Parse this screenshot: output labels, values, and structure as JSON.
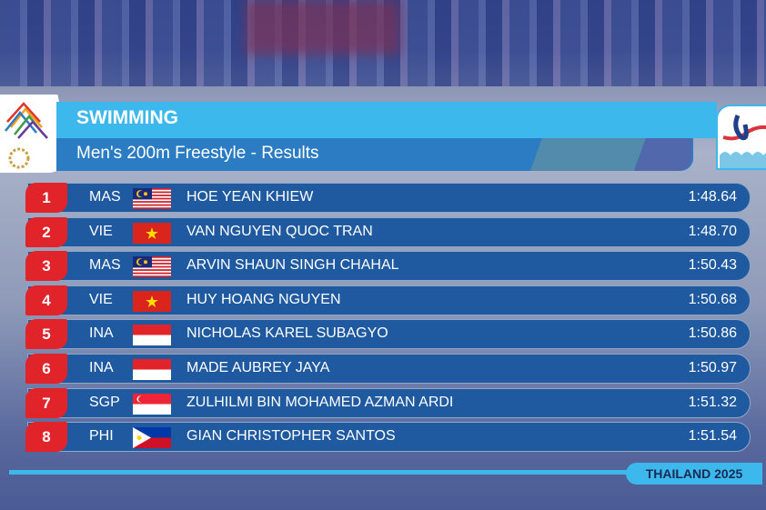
{
  "header": {
    "sport": "SWIMMING",
    "event": "Men's 200m Freestyle - Results"
  },
  "footer": {
    "edition": "THAILAND 2025"
  },
  "colors": {
    "title_band": "#3db8ec",
    "subtitle_band": "#2b7cc2",
    "row": "#1f5aa0",
    "rank_badge": "#e0242a"
  },
  "results": [
    {
      "rank": "1",
      "nat": "MAS",
      "flag": "malaysia",
      "name": "HOE YEAN KHIEW",
      "time": "1:48.64"
    },
    {
      "rank": "2",
      "nat": "VIE",
      "flag": "vietnam",
      "name": "VAN NGUYEN QUOC TRAN",
      "time": "1:48.70"
    },
    {
      "rank": "3",
      "nat": "MAS",
      "flag": "malaysia",
      "name": "ARVIN SHAUN SINGH CHAHAL",
      "time": "1:50.43"
    },
    {
      "rank": "4",
      "nat": "VIE",
      "flag": "vietnam",
      "name": "HUY HOANG NGUYEN",
      "time": "1:50.68"
    },
    {
      "rank": "5",
      "nat": "INA",
      "flag": "indonesia",
      "name": "NICHOLAS KAREL SUBAGYO",
      "time": "1:50.86"
    },
    {
      "rank": "6",
      "nat": "INA",
      "flag": "indonesia",
      "name": "MADE AUBREY JAYA",
      "time": "1:50.97"
    },
    {
      "rank": "7",
      "nat": "SGP",
      "flag": "singapore",
      "name": "ZULHILMI BIN MOHAMED AZMAN ARDI",
      "time": "1:51.32"
    },
    {
      "rank": "8",
      "nat": "PHI",
      "flag": "philippines",
      "name": "GIAN CHRISTOPHER SANTOS",
      "time": "1:51.54"
    }
  ]
}
